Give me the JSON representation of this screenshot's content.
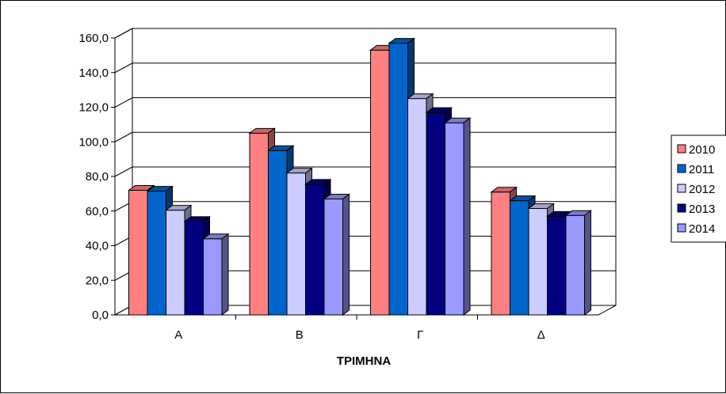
{
  "chart_data": {
    "type": "bar",
    "categories": [
      "A",
      "B",
      "Γ",
      "Δ"
    ],
    "series": [
      {
        "name": "2010",
        "values": [
          72.0,
          105.0,
          153.0,
          71.0
        ],
        "color": "#ff8080"
      },
      {
        "name": "2011",
        "values": [
          71.5,
          95.0,
          157.0,
          66.0
        ],
        "color": "#0066cc"
      },
      {
        "name": "2012",
        "values": [
          60.5,
          82.0,
          125.0,
          61.5
        ],
        "color": "#ccccff"
      },
      {
        "name": "2013",
        "values": [
          54.0,
          75.5,
          117.0,
          57.0
        ],
        "color": "#000080"
      },
      {
        "name": "2014",
        "values": [
          44.0,
          67.0,
          111.0,
          57.5
        ],
        "color": "#9999ff"
      }
    ],
    "title": "",
    "xlabel": "ΤΡΙΜΗΝΑ",
    "ylabel": "",
    "ylim": [
      0,
      160
    ],
    "yticks": [
      "0,0",
      "20,0",
      "40,0",
      "60,0",
      "80,0",
      "100,0",
      "120,0",
      "140,0",
      "160,0"
    ],
    "grid": true,
    "legend": "right",
    "style": "3d-clustered-column"
  }
}
